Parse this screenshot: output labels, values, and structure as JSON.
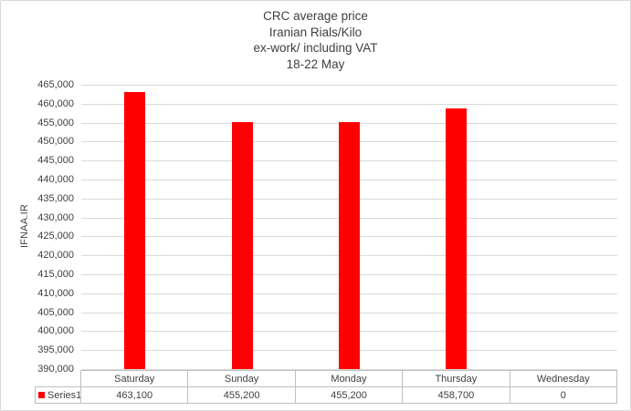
{
  "chart_data": {
    "type": "bar",
    "title_lines": [
      "CRC average price",
      "Iranian Rials/Kilo",
      "ex-work/ including VAT",
      "18-22 May"
    ],
    "categories": [
      "Saturday",
      "Sunday",
      "Monday",
      "Thursday",
      "Wednesday"
    ],
    "series": [
      {
        "name": "Series1",
        "values": [
          463100,
          455200,
          455200,
          458700,
          0
        ],
        "formatted_values": [
          "463,100",
          "455,200",
          "455,200",
          "458,700",
          "0"
        ],
        "color": "#ff0000"
      }
    ],
    "xlabel": "",
    "ylabel": "IFNAA.IR",
    "ylim": [
      390000,
      465000
    ],
    "ytick_step": 5000,
    "ytick_labels": [
      "465,000",
      "460,000",
      "455,000",
      "450,000",
      "445,000",
      "440,000",
      "435,000",
      "430,000",
      "425,000",
      "420,000",
      "415,000",
      "410,000",
      "405,000",
      "400,000",
      "395,000",
      "390,000"
    ],
    "grid": true,
    "legend_position": "data-table-left",
    "colors": {
      "bar": "#ff0000",
      "gridline": "#d9d9d9",
      "table_border": "#bfbfbf",
      "text": "#404040",
      "frame_border": "#d9d9d9"
    }
  }
}
